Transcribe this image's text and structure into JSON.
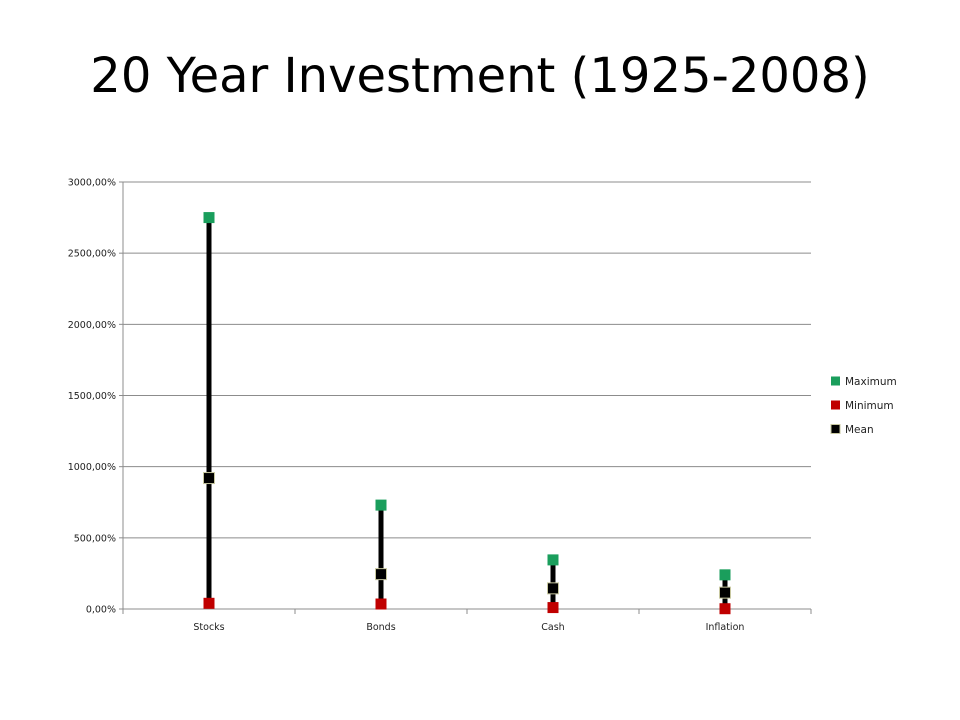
{
  "slide": {
    "title": "20 Year Investment (1925-2008)"
  },
  "chart_data": {
    "type": "scatter",
    "subtype": "high-low-mean",
    "title": "",
    "xlabel": "",
    "ylabel": "",
    "categories": [
      "Stocks",
      "Bonds",
      "Cash",
      "Inflation"
    ],
    "ylim": [
      0,
      3000
    ],
    "y_ticks": [
      0,
      500,
      1000,
      1500,
      2000,
      2500,
      3000
    ],
    "y_tick_labels": [
      "0,00%",
      "500,00%",
      "1000,00%",
      "1500,00%",
      "2000,00%",
      "2500,00%",
      "3000,00%"
    ],
    "grid": true,
    "legend_position": "right",
    "series": [
      {
        "name": "Maximum",
        "color": "#1a9e5c",
        "values": [
          2750,
          730,
          345,
          240
        ]
      },
      {
        "name": "Minimum",
        "color": "#c00000",
        "values": [
          40,
          35,
          10,
          2
        ]
      },
      {
        "name": "Mean",
        "color": "#000000",
        "values": [
          920,
          245,
          145,
          115
        ]
      }
    ],
    "range_line_color": "#000000"
  }
}
